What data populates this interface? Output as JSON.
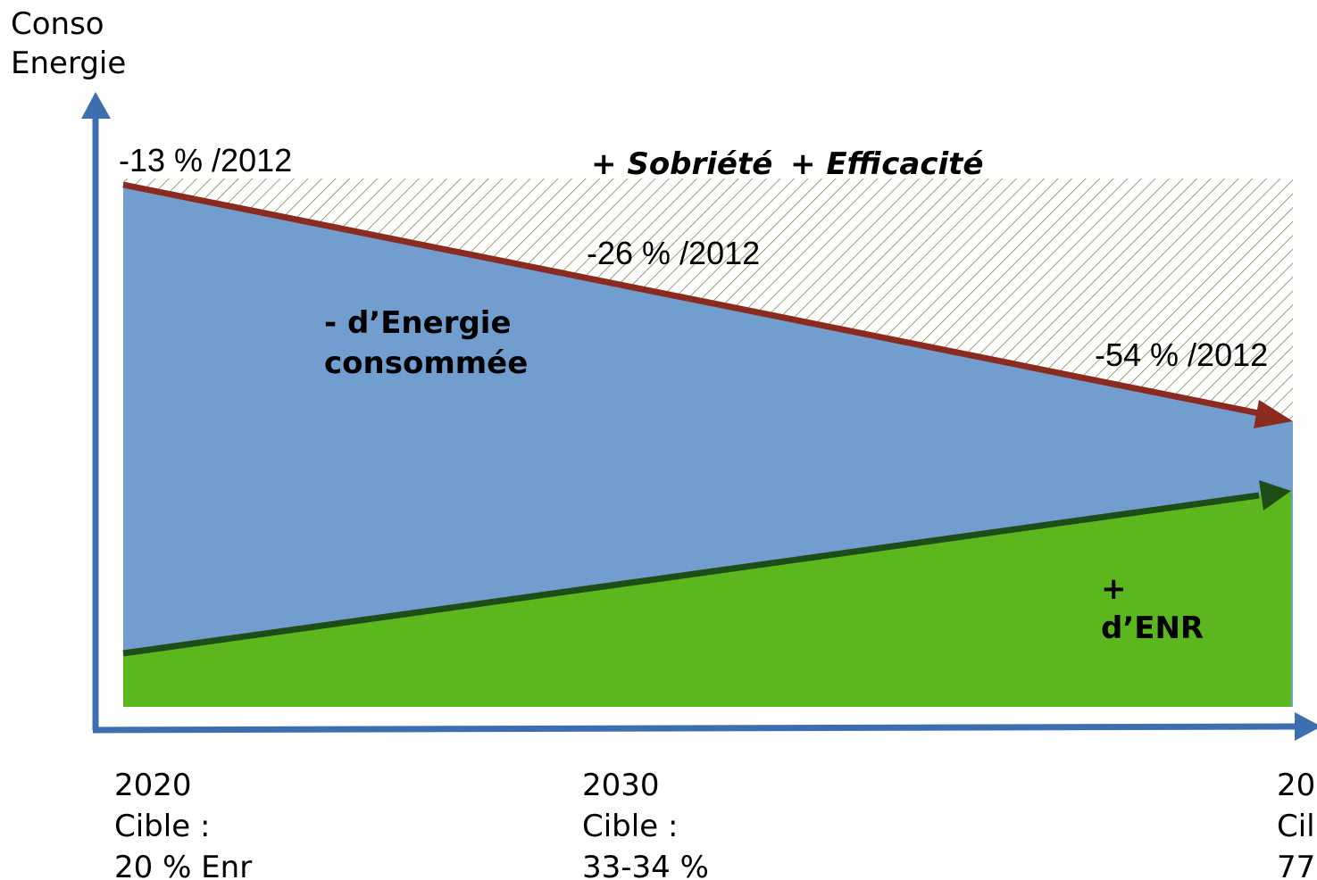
{
  "axis_label": [
    "Conso",
    "Energie"
  ],
  "consumption_labels": [
    "-13 % /2012",
    "-26 % /2012",
    "-54 % /2012"
  ],
  "top_label": [
    "+ Sobriété",
    "+ Efficacité"
  ],
  "energy_label": [
    "- d’Energie",
    "consommée"
  ],
  "enr_label": [
    "+",
    "d’ENR"
  ],
  "milestones": [
    {
      "lines": [
        "2020",
        "Cible :",
        "20 % Enr"
      ]
    },
    {
      "lines": [
        "2030",
        "Cible :",
        "33-34 %"
      ]
    },
    {
      "lines": [
        "20",
        "Cil",
        "77"
      ]
    }
  ]
}
